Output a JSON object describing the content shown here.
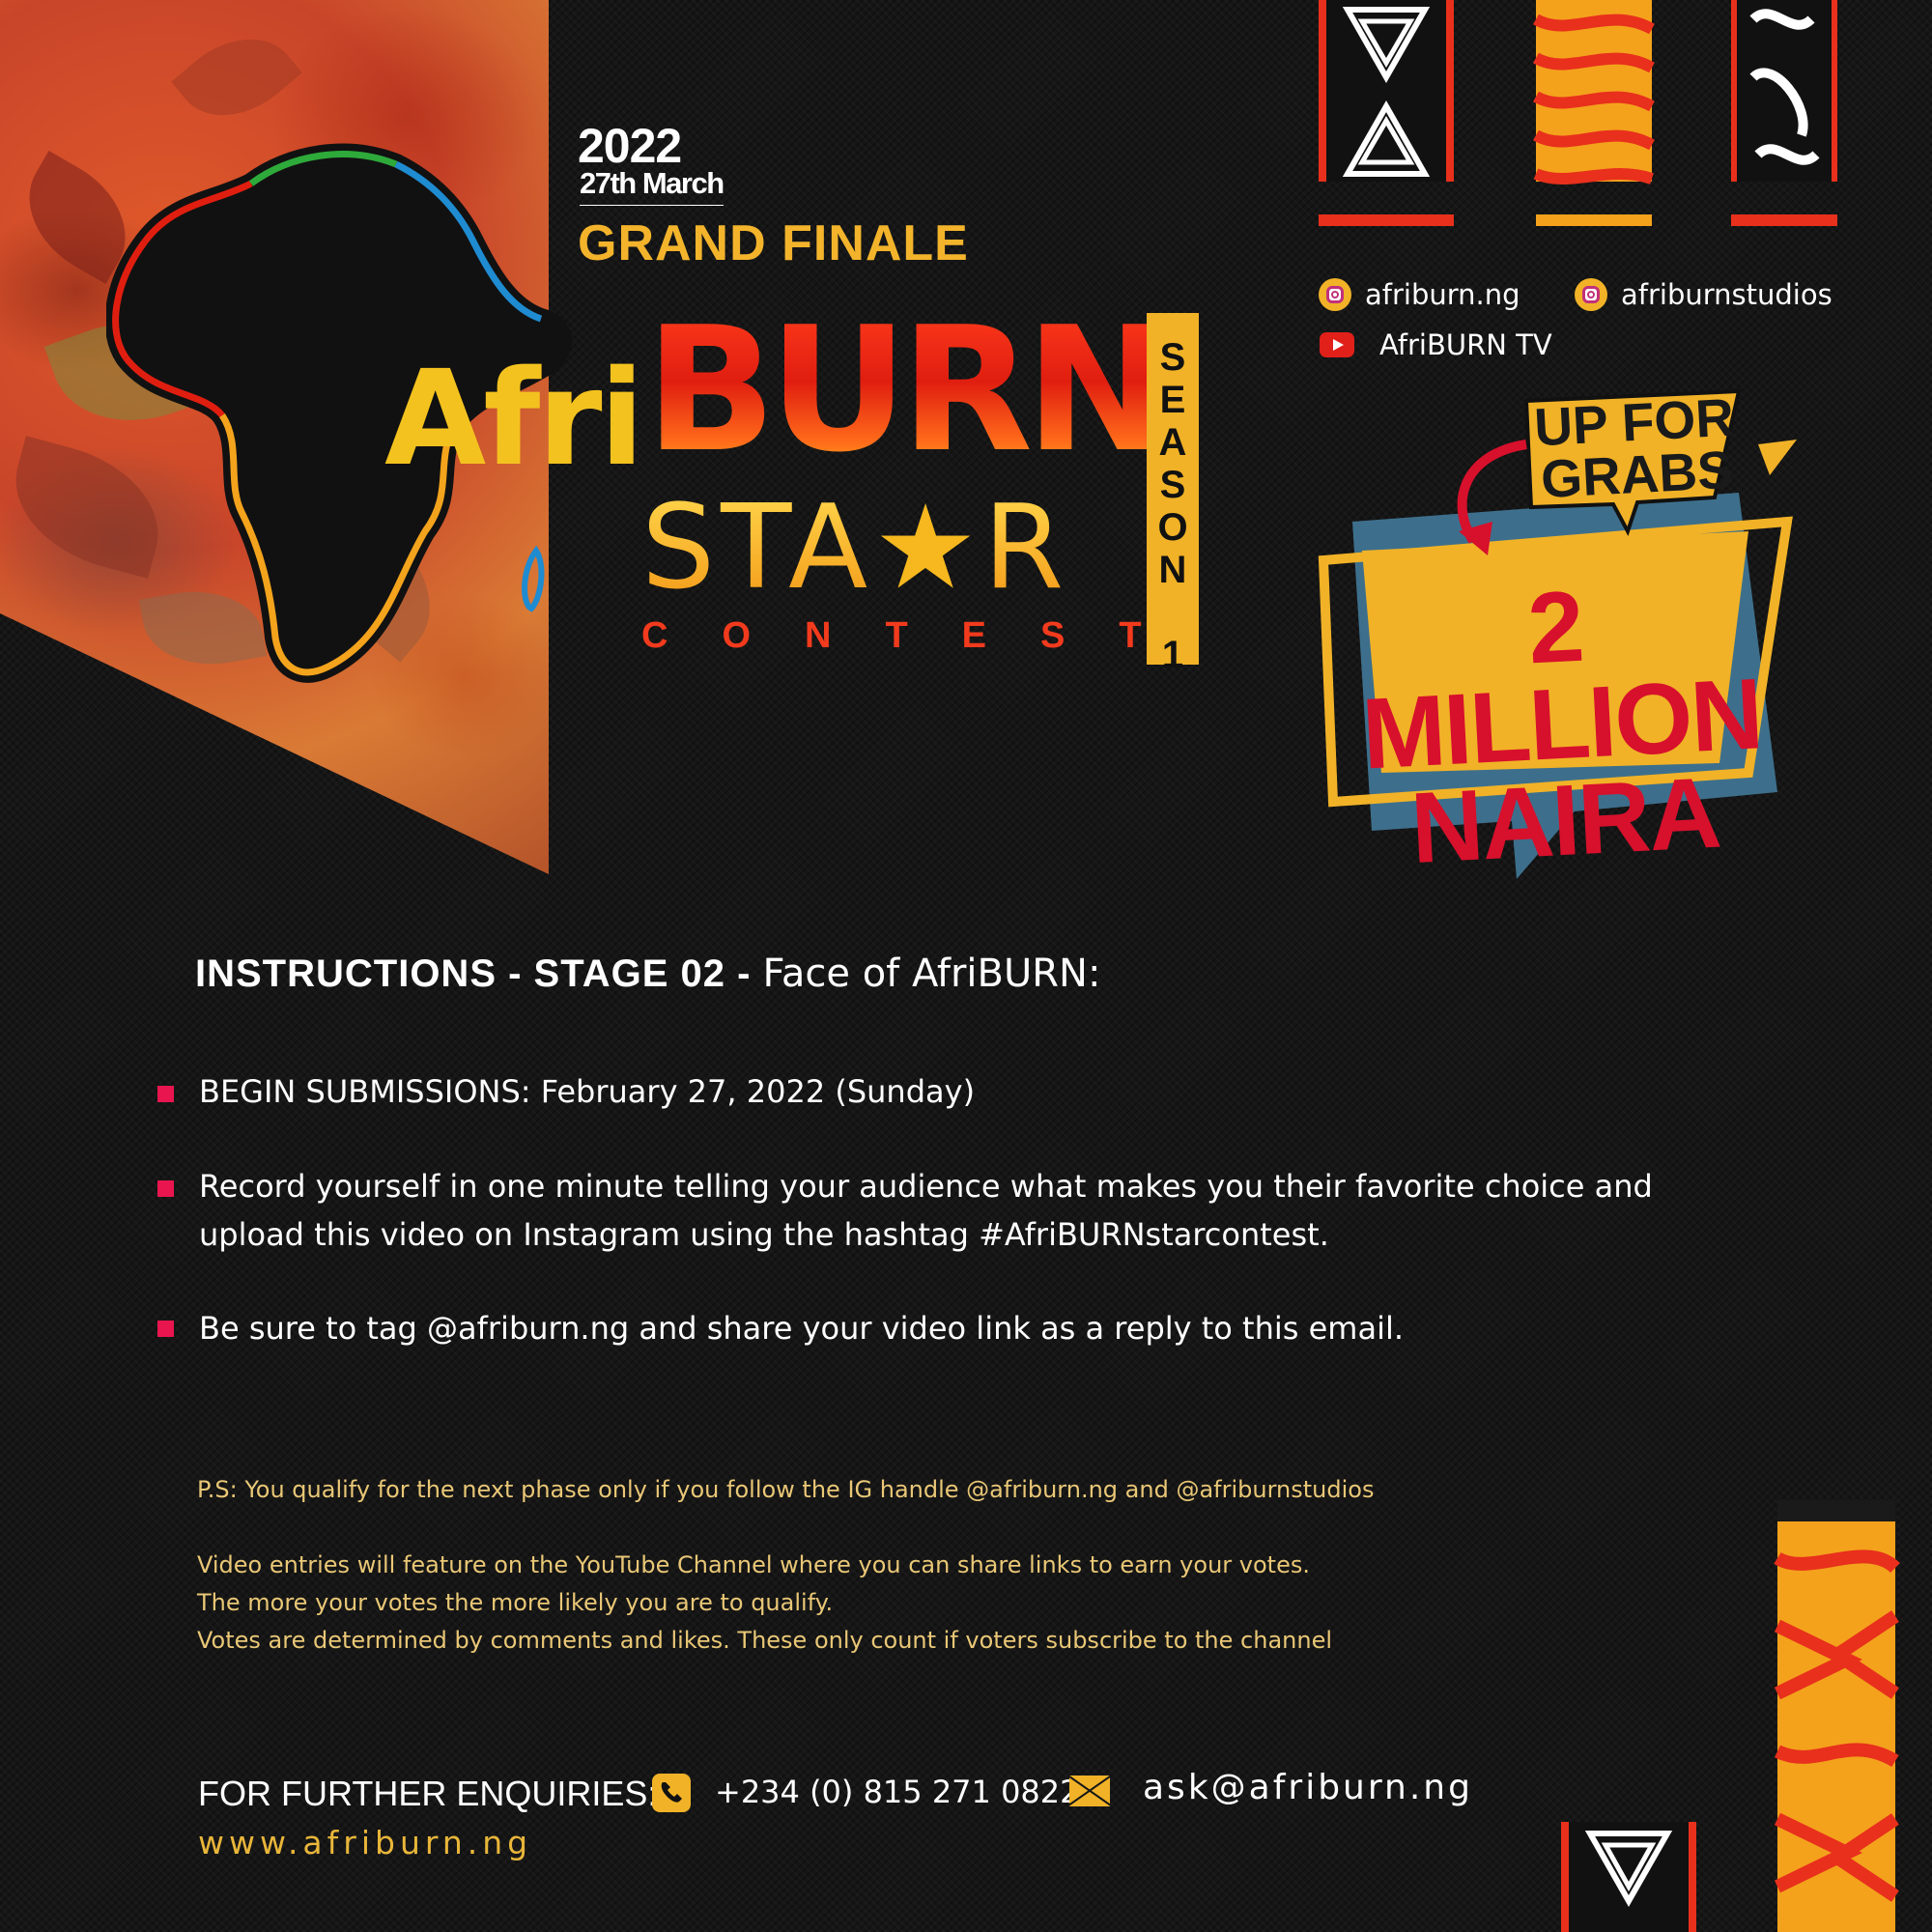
{
  "event": {
    "year": "2022",
    "date": "27th March",
    "title": "GRAND FINALE"
  },
  "logo": {
    "afri": "Afri",
    "burn": "BURN",
    "star": "STAR",
    "contest": "CONTEST",
    "season": "SEASON 1"
  },
  "socials": [
    {
      "icon": "instagram-icon",
      "handle": "afriburn.ng"
    },
    {
      "icon": "instagram-icon",
      "handle": "afriburnstudios"
    },
    {
      "icon": "youtube-icon",
      "handle": "AfriBURN TV"
    }
  ],
  "prize": {
    "badge": "UP FOR GRABS",
    "amount_line1": "2 MILLION",
    "amount_line2": "NAIRA"
  },
  "instructions": {
    "heading_bold": "INSTRUCTIONS - STAGE 02 - ",
    "heading_rest": "Face of AfriBURN:",
    "bullets": [
      "BEGIN SUBMISSIONS: February 27, 2022 (Sunday)",
      "Record yourself in one minute telling your audience what makes you their favorite choice and upload this video on Instagram using the hashtag #AfriBURNstarcontest.",
      "Be sure to tag @afriburn.ng and share your video link as a reply to this email."
    ]
  },
  "notes": {
    "ps": "P.S: You qualify for the next phase only if you follow the IG handle @afriburn.ng and @afriburnstudios",
    "lines": [
      "Video entries will feature on the YouTube Channel where you can share links to earn your votes.",
      "The more your votes the more likely you are to qualify.",
      "Votes are determined by comments and likes. These only count if voters subscribe to the channel"
    ]
  },
  "contact": {
    "label": "FOR FURTHER ENQUIRIES:",
    "phone": "+234 (0) 815 271 0822",
    "email": "ask@afriburn.ng",
    "website": "www.afriburn.ng"
  },
  "colors": {
    "accent_yellow": "#f1b227",
    "accent_red": "#e01e10",
    "bullet_pink": "#e8154e",
    "background": "#161616"
  }
}
